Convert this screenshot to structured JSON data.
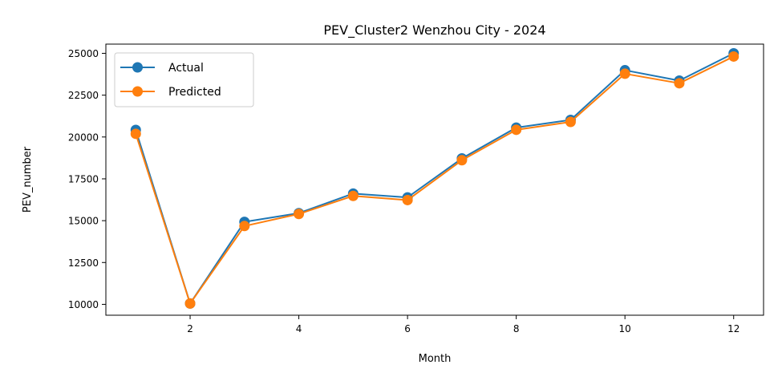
{
  "chart_data": {
    "type": "line",
    "title": "PEV_Cluster2 Wenzhou City - 2024",
    "xlabel": "Month",
    "ylabel": "PEV_number",
    "x": [
      1,
      2,
      3,
      4,
      5,
      6,
      7,
      8,
      9,
      10,
      11,
      12
    ],
    "xlim": [
      0.45,
      12.55
    ],
    "ylim": [
      9350,
      25550
    ],
    "xticks": [
      2,
      4,
      6,
      8,
      10,
      12
    ],
    "yticks": [
      10000,
      12500,
      15000,
      17500,
      20000,
      22500,
      25000
    ],
    "grid": false,
    "legend_position": "top-left",
    "series": [
      {
        "name": "Actual",
        "color": "#1f77b4",
        "marker": "circle",
        "values": [
          20420,
          10050,
          14930,
          15450,
          16620,
          16390,
          18720,
          20560,
          21020,
          23990,
          23370,
          25000
        ]
      },
      {
        "name": "Predicted",
        "color": "#ff7f0e",
        "marker": "circle",
        "values": [
          20190,
          10050,
          14680,
          15400,
          16480,
          16230,
          18610,
          20430,
          20900,
          23780,
          23210,
          24810
        ]
      }
    ]
  }
}
